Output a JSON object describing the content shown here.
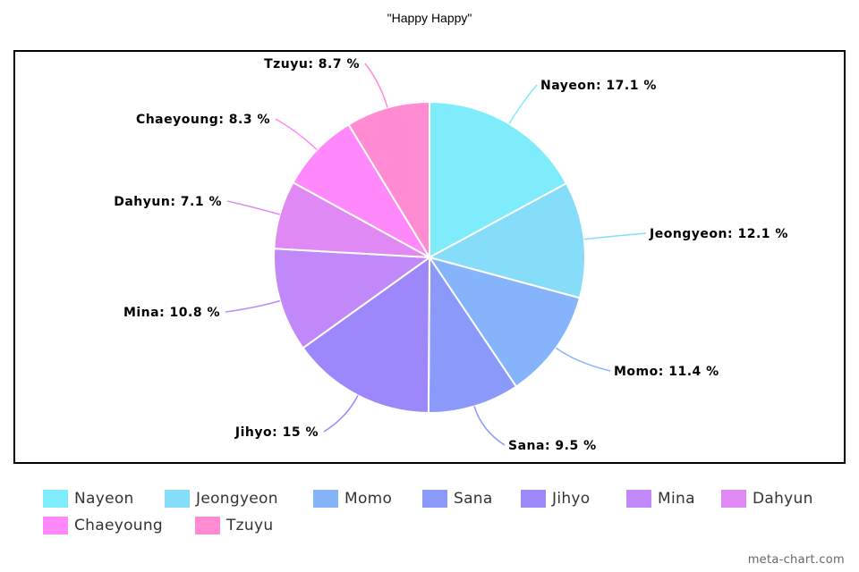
{
  "chart_data": {
    "type": "pie",
    "title": "\"Happy Happy\"",
    "slices": [
      {
        "name": "Nayeon",
        "value": 17.1,
        "display": "Nayeon: 17.1 %",
        "color": "#7fecfb"
      },
      {
        "name": "Jeongyeon",
        "value": 12.1,
        "display": "Jeongyeon: 12.1 %",
        "color": "#85ddf9"
      },
      {
        "name": "Momo",
        "value": 11.4,
        "display": "Momo: 11.4 %",
        "color": "#86b4fb"
      },
      {
        "name": "Sana",
        "value": 9.5,
        "display": "Sana: 9.5 %",
        "color": "#8b99fb"
      },
      {
        "name": "Jihyo",
        "value": 15,
        "display": "Jihyo: 15 %",
        "color": "#9c88fb"
      },
      {
        "name": "Mina",
        "value": 10.8,
        "display": "Mina: 10.8 %",
        "color": "#c088f9"
      },
      {
        "name": "Dahyun",
        "value": 7.1,
        "display": "Dahyun: 7.1 %",
        "color": "#e088f3"
      },
      {
        "name": "Chaeyoung",
        "value": 8.3,
        "display": "Chaeyoung: 8.3 %",
        "color": "#ff88fb"
      },
      {
        "name": "Tzuyu",
        "value": 8.7,
        "display": "Tzuyu: 8.7 %",
        "color": "#ff8cd3"
      }
    ],
    "legend_position": "bottom"
  },
  "footer": {
    "watermark": "meta-chart.com"
  }
}
